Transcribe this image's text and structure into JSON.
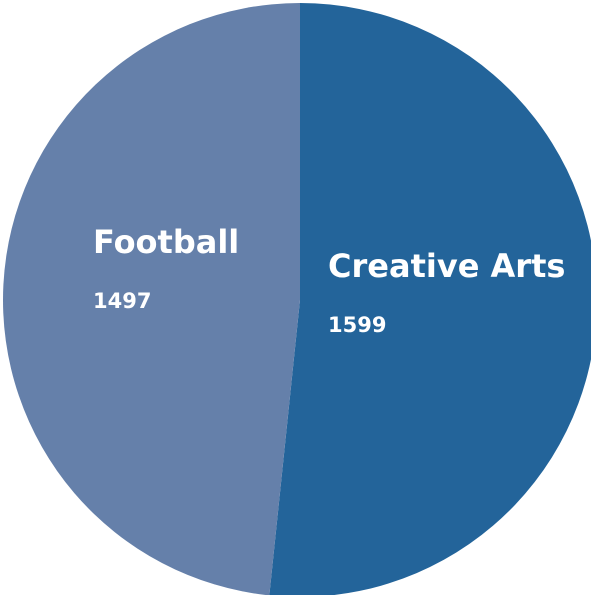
{
  "chart_data": {
    "type": "pie",
    "title": "",
    "slices": [
      {
        "label": "Creative Arts",
        "value": 1599,
        "color": "#23649a"
      },
      {
        "label": "Football",
        "value": 1497,
        "color": "#6580aa"
      }
    ],
    "start": "top",
    "direction": "clockwise",
    "legend": "none",
    "labels": "inside-slices"
  }
}
